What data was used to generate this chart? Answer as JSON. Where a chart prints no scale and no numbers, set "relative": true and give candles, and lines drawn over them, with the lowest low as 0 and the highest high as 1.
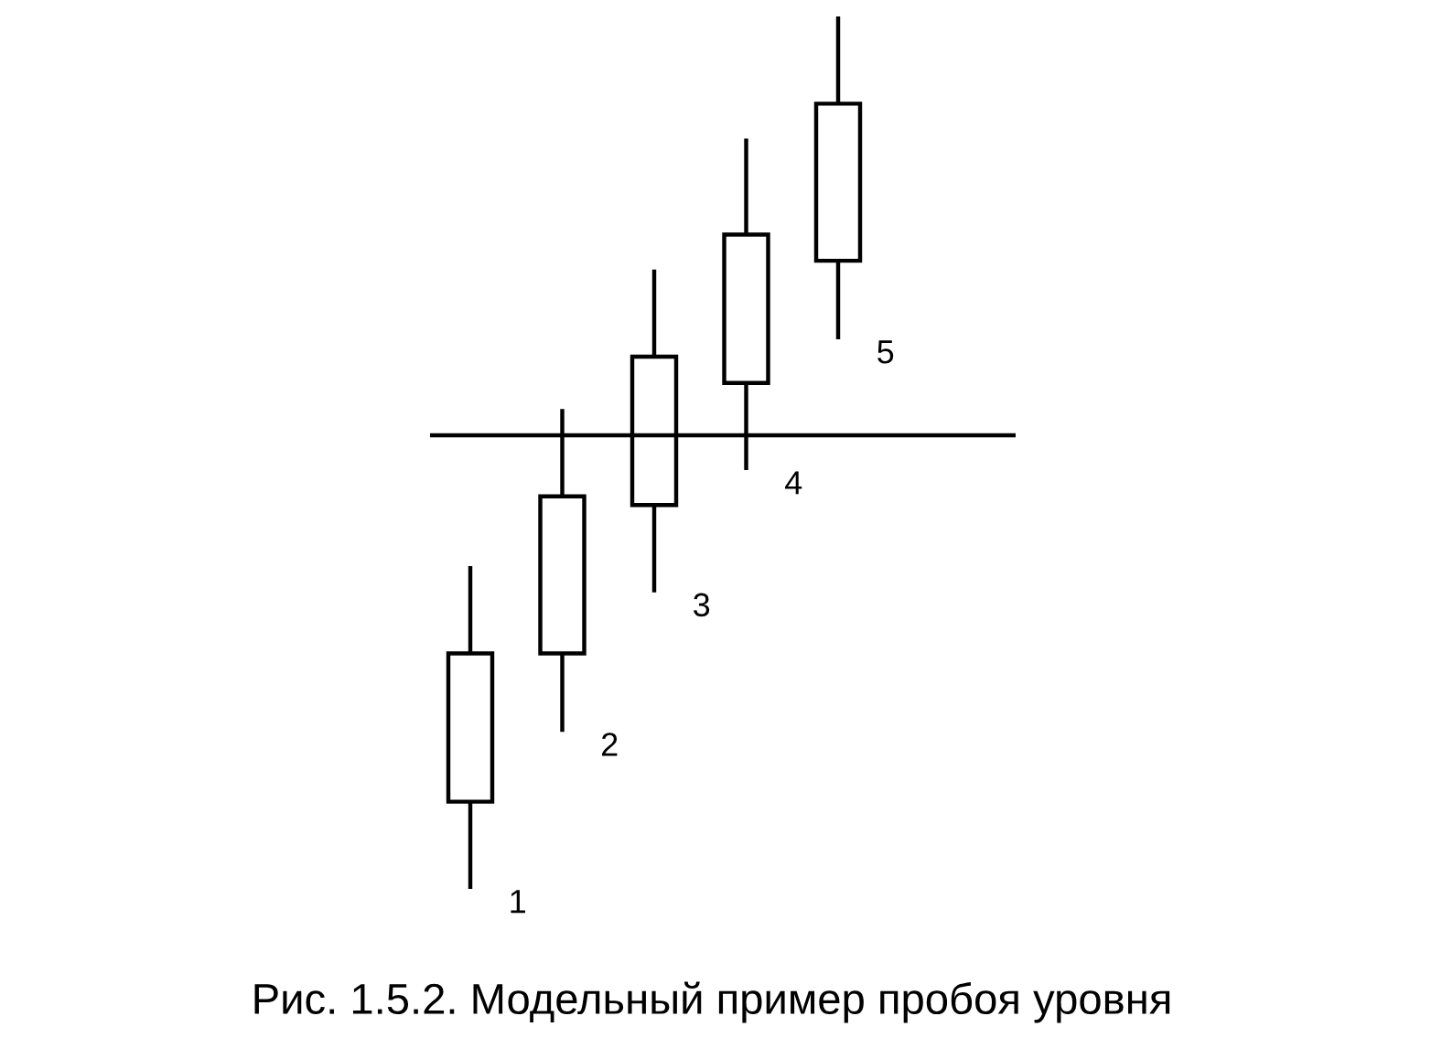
{
  "chart_data": {
    "type": "candlestick",
    "title": "Рис. 1.5.2. Модельный пример пробоя уровня",
    "categories": [
      null,
      null,
      null,
      null,
      null
    ],
    "relative": true,
    "ohlc": [
      [
        0.1,
        0.37,
        0,
        0.27
      ],
      [
        0.27,
        0.55,
        0.18,
        0.45
      ],
      [
        0.44,
        0.71,
        0.34,
        0.61
      ],
      [
        0.58,
        0.86,
        0.48,
        0.75
      ],
      [
        0.72,
        1,
        0.63,
        0.9
      ]
    ],
    "color": "#000000",
    "ref_lines": [
      {
        "axis": "y",
        "value": 0.52,
        "color": "#000000"
      }
    ],
    "annotations": [
      "1",
      "2",
      "3",
      "4",
      "5"
    ]
  }
}
